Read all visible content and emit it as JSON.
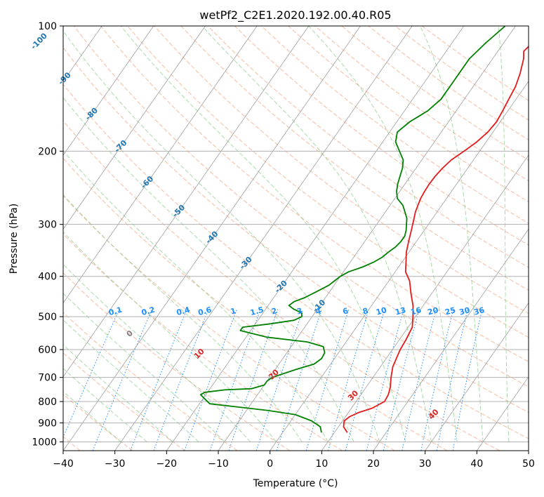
{
  "chart_data": {
    "type": "line",
    "title": "wetPf2_C2E1.2020.192.00.40.R05",
    "xlabel": "Temperature (°C)",
    "ylabel": "Pressure (hPa)",
    "xlim": [
      -40,
      50
    ],
    "ylim": [
      1050,
      100
    ],
    "y_scale": "log",
    "skew": true,
    "grid": true,
    "x_ticks": [
      -40,
      -30,
      -20,
      -10,
      0,
      10,
      20,
      30,
      40,
      50
    ],
    "y_ticks": [
      100,
      200,
      300,
      400,
      500,
      600,
      700,
      800,
      900,
      1000
    ],
    "series": [
      {
        "color": "#e31a1c",
        "points": [
          [
            12.5,
            950
          ],
          [
            11,
            920
          ],
          [
            10.3,
            890
          ],
          [
            10.8,
            870
          ],
          [
            12,
            850
          ],
          [
            14,
            830
          ],
          [
            15.5,
            800
          ],
          [
            15.3,
            770
          ],
          [
            14.7,
            740
          ],
          [
            13.5,
            700
          ],
          [
            12.4,
            660
          ],
          [
            12.1,
            640
          ],
          [
            11.8,
            620
          ],
          [
            11.5,
            600
          ],
          [
            11.3,
            570
          ],
          [
            10.8,
            530
          ],
          [
            9.5,
            500
          ],
          [
            8,
            470
          ],
          [
            6,
            440
          ],
          [
            4,
            410
          ],
          [
            2,
            390
          ],
          [
            0.8,
            370
          ],
          [
            -0.5,
            350
          ],
          [
            -1.5,
            330
          ],
          [
            -2.5,
            310
          ],
          [
            -3.6,
            290
          ],
          [
            -4.2,
            280
          ],
          [
            -4.6,
            270
          ],
          [
            -5,
            260
          ],
          [
            -5.2,
            250
          ],
          [
            -5.3,
            240
          ],
          [
            -5.2,
            230
          ],
          [
            -4.9,
            220
          ],
          [
            -4.3,
            210
          ],
          [
            -3,
            200
          ],
          [
            -1.8,
            190
          ],
          [
            -1,
            180
          ],
          [
            -0.7,
            170
          ],
          [
            -1,
            160
          ],
          [
            -1.4,
            150
          ],
          [
            -1.8,
            140
          ],
          [
            -2.7,
            130
          ],
          [
            -4,
            120
          ],
          [
            -5,
            115
          ],
          [
            -4.5,
            110
          ],
          [
            -4.5,
            100
          ]
        ]
      },
      {
        "color": "#008000",
        "points": [
          [
            7.5,
            950
          ],
          [
            6.5,
            920
          ],
          [
            4,
            890
          ],
          [
            0,
            860
          ],
          [
            -6,
            840
          ],
          [
            -12,
            825
          ],
          [
            -18,
            810
          ],
          [
            -19.5,
            790
          ],
          [
            -21,
            770
          ],
          [
            -20.5,
            760
          ],
          [
            -17,
            750
          ],
          [
            -12,
            745
          ],
          [
            -10,
            730
          ],
          [
            -10,
            715
          ],
          [
            -9.5,
            700
          ],
          [
            -6,
            670
          ],
          [
            -3.2,
            650
          ],
          [
            -2.5,
            630
          ],
          [
            -2.7,
            610
          ],
          [
            -3.8,
            590
          ],
          [
            -7.5,
            575
          ],
          [
            -16,
            560
          ],
          [
            -22,
            540
          ],
          [
            -22,
            530
          ],
          [
            -17,
            520
          ],
          [
            -13,
            510
          ],
          [
            -12,
            500
          ],
          [
            -12.5,
            490
          ],
          [
            -14.5,
            480
          ],
          [
            -16,
            470
          ],
          [
            -15.5,
            460
          ],
          [
            -14,
            450
          ],
          [
            -13,
            440
          ],
          [
            -12,
            430
          ],
          [
            -11,
            420
          ],
          [
            -10.5,
            410
          ],
          [
            -10,
            400
          ],
          [
            -9,
            390
          ],
          [
            -7,
            380
          ],
          [
            -5.5,
            370
          ],
          [
            -4.5,
            360
          ],
          [
            -4,
            350
          ],
          [
            -3.3,
            340
          ],
          [
            -3,
            330
          ],
          [
            -3,
            320
          ],
          [
            -3.5,
            310
          ],
          [
            -5,
            290
          ],
          [
            -7.5,
            270
          ],
          [
            -9.5,
            260
          ],
          [
            -10.6,
            250
          ],
          [
            -11.4,
            240
          ],
          [
            -12,
            230
          ],
          [
            -12.6,
            220
          ],
          [
            -13.6,
            210
          ],
          [
            -15.5,
            200
          ],
          [
            -17.5,
            190
          ],
          [
            -18.5,
            180
          ],
          [
            -17.5,
            170
          ],
          [
            -16.5,
            165
          ],
          [
            -15.5,
            160
          ],
          [
            -14.5,
            150
          ],
          [
            -14.5,
            140
          ],
          [
            -14.5,
            130
          ],
          [
            -14.5,
            120
          ],
          [
            -13.5,
            110
          ],
          [
            -12,
            100
          ]
        ]
      }
    ],
    "isotherm_labels": [
      "-100",
      "-90",
      "-80",
      "-70",
      "-60",
      "-50",
      "-40",
      "-30",
      "-20",
      "-10"
    ],
    "isotherm_label_color": "#1f77b4",
    "mixing_ratio_labels": [
      "0.1",
      "0.2",
      "0.4",
      "0.6",
      "1",
      "1.5",
      "2",
      "3",
      "4",
      "6",
      "8",
      "10",
      "13",
      "16",
      "20",
      "25",
      "30",
      "36"
    ],
    "mixing_ratio_color": "#1e90ff",
    "dry_adiabat_labels": [
      "0",
      "10",
      "20",
      "30",
      "40"
    ],
    "dry_adiabat_label_color": "#d62728",
    "dry_adiabat_zero_color": "#808080",
    "dry_adiabat_color": "#f4a582",
    "moist_adiabat_color": "#8fce8f",
    "isotherm_line_color": "#a0a0a0"
  }
}
